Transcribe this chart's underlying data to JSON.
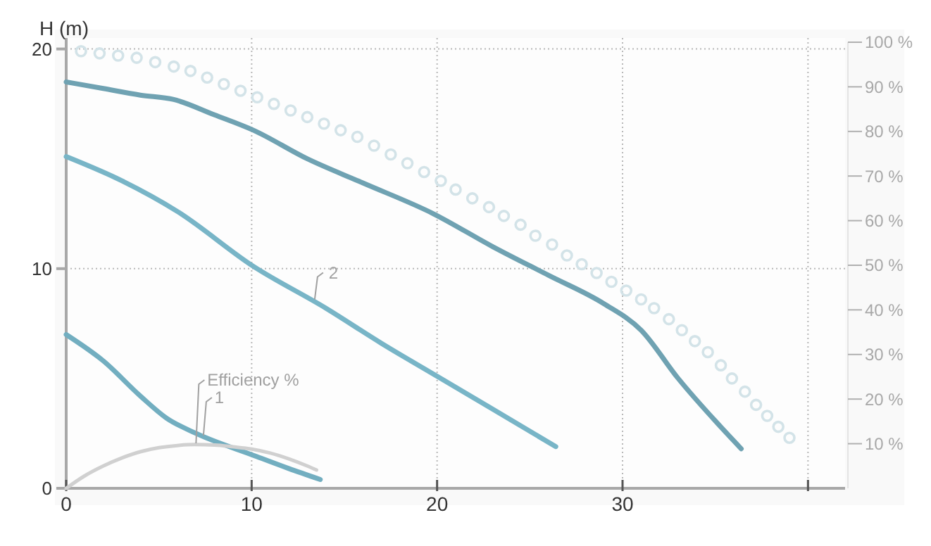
{
  "chart_data": {
    "type": "line",
    "ylabel": "H (m)",
    "xlim": [
      0,
      42
    ],
    "xticks": [
      0,
      10,
      20,
      30,
      {
        "value": 40,
        "label": null
      }
    ],
    "ylim": [
      0,
      20.5
    ],
    "yticks": [
      0,
      10,
      20
    ],
    "y2lim": [
      0,
      100
    ],
    "y2ticks": [
      {
        "value": 10,
        "label": "10 %"
      },
      {
        "value": 20,
        "label": "20 %"
      },
      {
        "value": 30,
        "label": "30 %"
      },
      {
        "value": 40,
        "label": "40 %"
      },
      {
        "value": 50,
        "label": "50 %"
      },
      {
        "value": 60,
        "label": "60 %"
      },
      {
        "value": 70,
        "label": "70 %"
      },
      {
        "value": 80,
        "label": "80 %"
      },
      {
        "value": 90,
        "label": "90 %"
      },
      {
        "value": 100,
        "label": "100 %"
      }
    ],
    "grid": true,
    "series": [
      {
        "type": "scatter",
        "marker": "circle",
        "color": "#d3e3e8",
        "x": [
          0.8,
          1.8,
          2.8,
          3.8,
          4.8,
          5.8,
          6.7,
          7.6,
          8.5,
          9.4,
          10.3,
          11.2,
          12.1,
          13.0,
          13.9,
          14.8,
          15.7,
          16.6,
          17.5,
          18.4,
          19.3,
          20.2,
          21.0,
          21.9,
          22.8,
          23.6,
          24.5,
          25.3,
          26.2,
          27.0,
          27.8,
          28.6,
          29.4,
          30.2,
          31.0,
          31.7,
          32.5,
          33.2,
          33.9,
          34.6,
          35.3,
          35.9,
          36.6,
          37.2,
          37.8,
          38.4,
          39.0
        ],
        "values": [
          19.9,
          19.8,
          19.7,
          19.6,
          19.4,
          19.2,
          19.0,
          18.7,
          18.4,
          18.1,
          17.8,
          17.5,
          17.2,
          16.9,
          16.6,
          16.3,
          16.0,
          15.6,
          15.2,
          14.8,
          14.4,
          14.0,
          13.6,
          13.2,
          12.8,
          12.4,
          12.0,
          11.5,
          11.1,
          10.6,
          10.2,
          9.8,
          9.4,
          9.0,
          8.6,
          8.2,
          7.7,
          7.2,
          6.7,
          6.2,
          5.6,
          5.0,
          4.4,
          3.8,
          3.3,
          2.8,
          2.3
        ]
      },
      {
        "color": "#6fa2b2",
        "x": [
          0,
          2,
          4,
          5.8,
          8,
          10.1,
          13,
          16,
          19.8,
          23,
          26,
          29,
          31,
          33,
          35.4,
          36.4
        ],
        "values": [
          18.5,
          18.2,
          17.9,
          17.7,
          17.0,
          16.3,
          15.0,
          13.9,
          12.5,
          11.0,
          9.7,
          8.4,
          7.2,
          5.0,
          2.7,
          1.8
        ]
      },
      {
        "color": "#78b5c7",
        "x": [
          0,
          3,
          6,
          10.1,
          14,
          17,
          20,
          23,
          26.4
        ],
        "values": [
          15.1,
          14.0,
          12.6,
          10.1,
          8.2,
          6.6,
          5.1,
          3.6,
          1.9
        ]
      },
      {
        "color": "#72aec0",
        "x": [
          0,
          2,
          4,
          5.4,
          7,
          10.1,
          12,
          13.7
        ],
        "values": [
          7.0,
          5.8,
          4.2,
          3.2,
          2.5,
          1.5,
          0.9,
          0.4
        ]
      },
      {
        "axis": "y2",
        "color": "#d0d0d0",
        "x": [
          0,
          1,
          2,
          3,
          4,
          5,
          6,
          6.9,
          8,
          9,
          10,
          11,
          12,
          13,
          13.5
        ],
        "values": [
          0,
          2.8,
          5.0,
          6.8,
          8.2,
          9.1,
          9.6,
          9.8,
          9.7,
          9.3,
          8.8,
          7.9,
          6.6,
          5.0,
          4.1
        ]
      }
    ],
    "annotations": [
      {
        "text": "2",
        "x": 13.4,
        "y": 8.6
      },
      {
        "text": "Efficiency %",
        "x": 7.0,
        "y": 2.05
      },
      {
        "text": "1",
        "x": 7.4,
        "y": 2.4
      }
    ]
  }
}
